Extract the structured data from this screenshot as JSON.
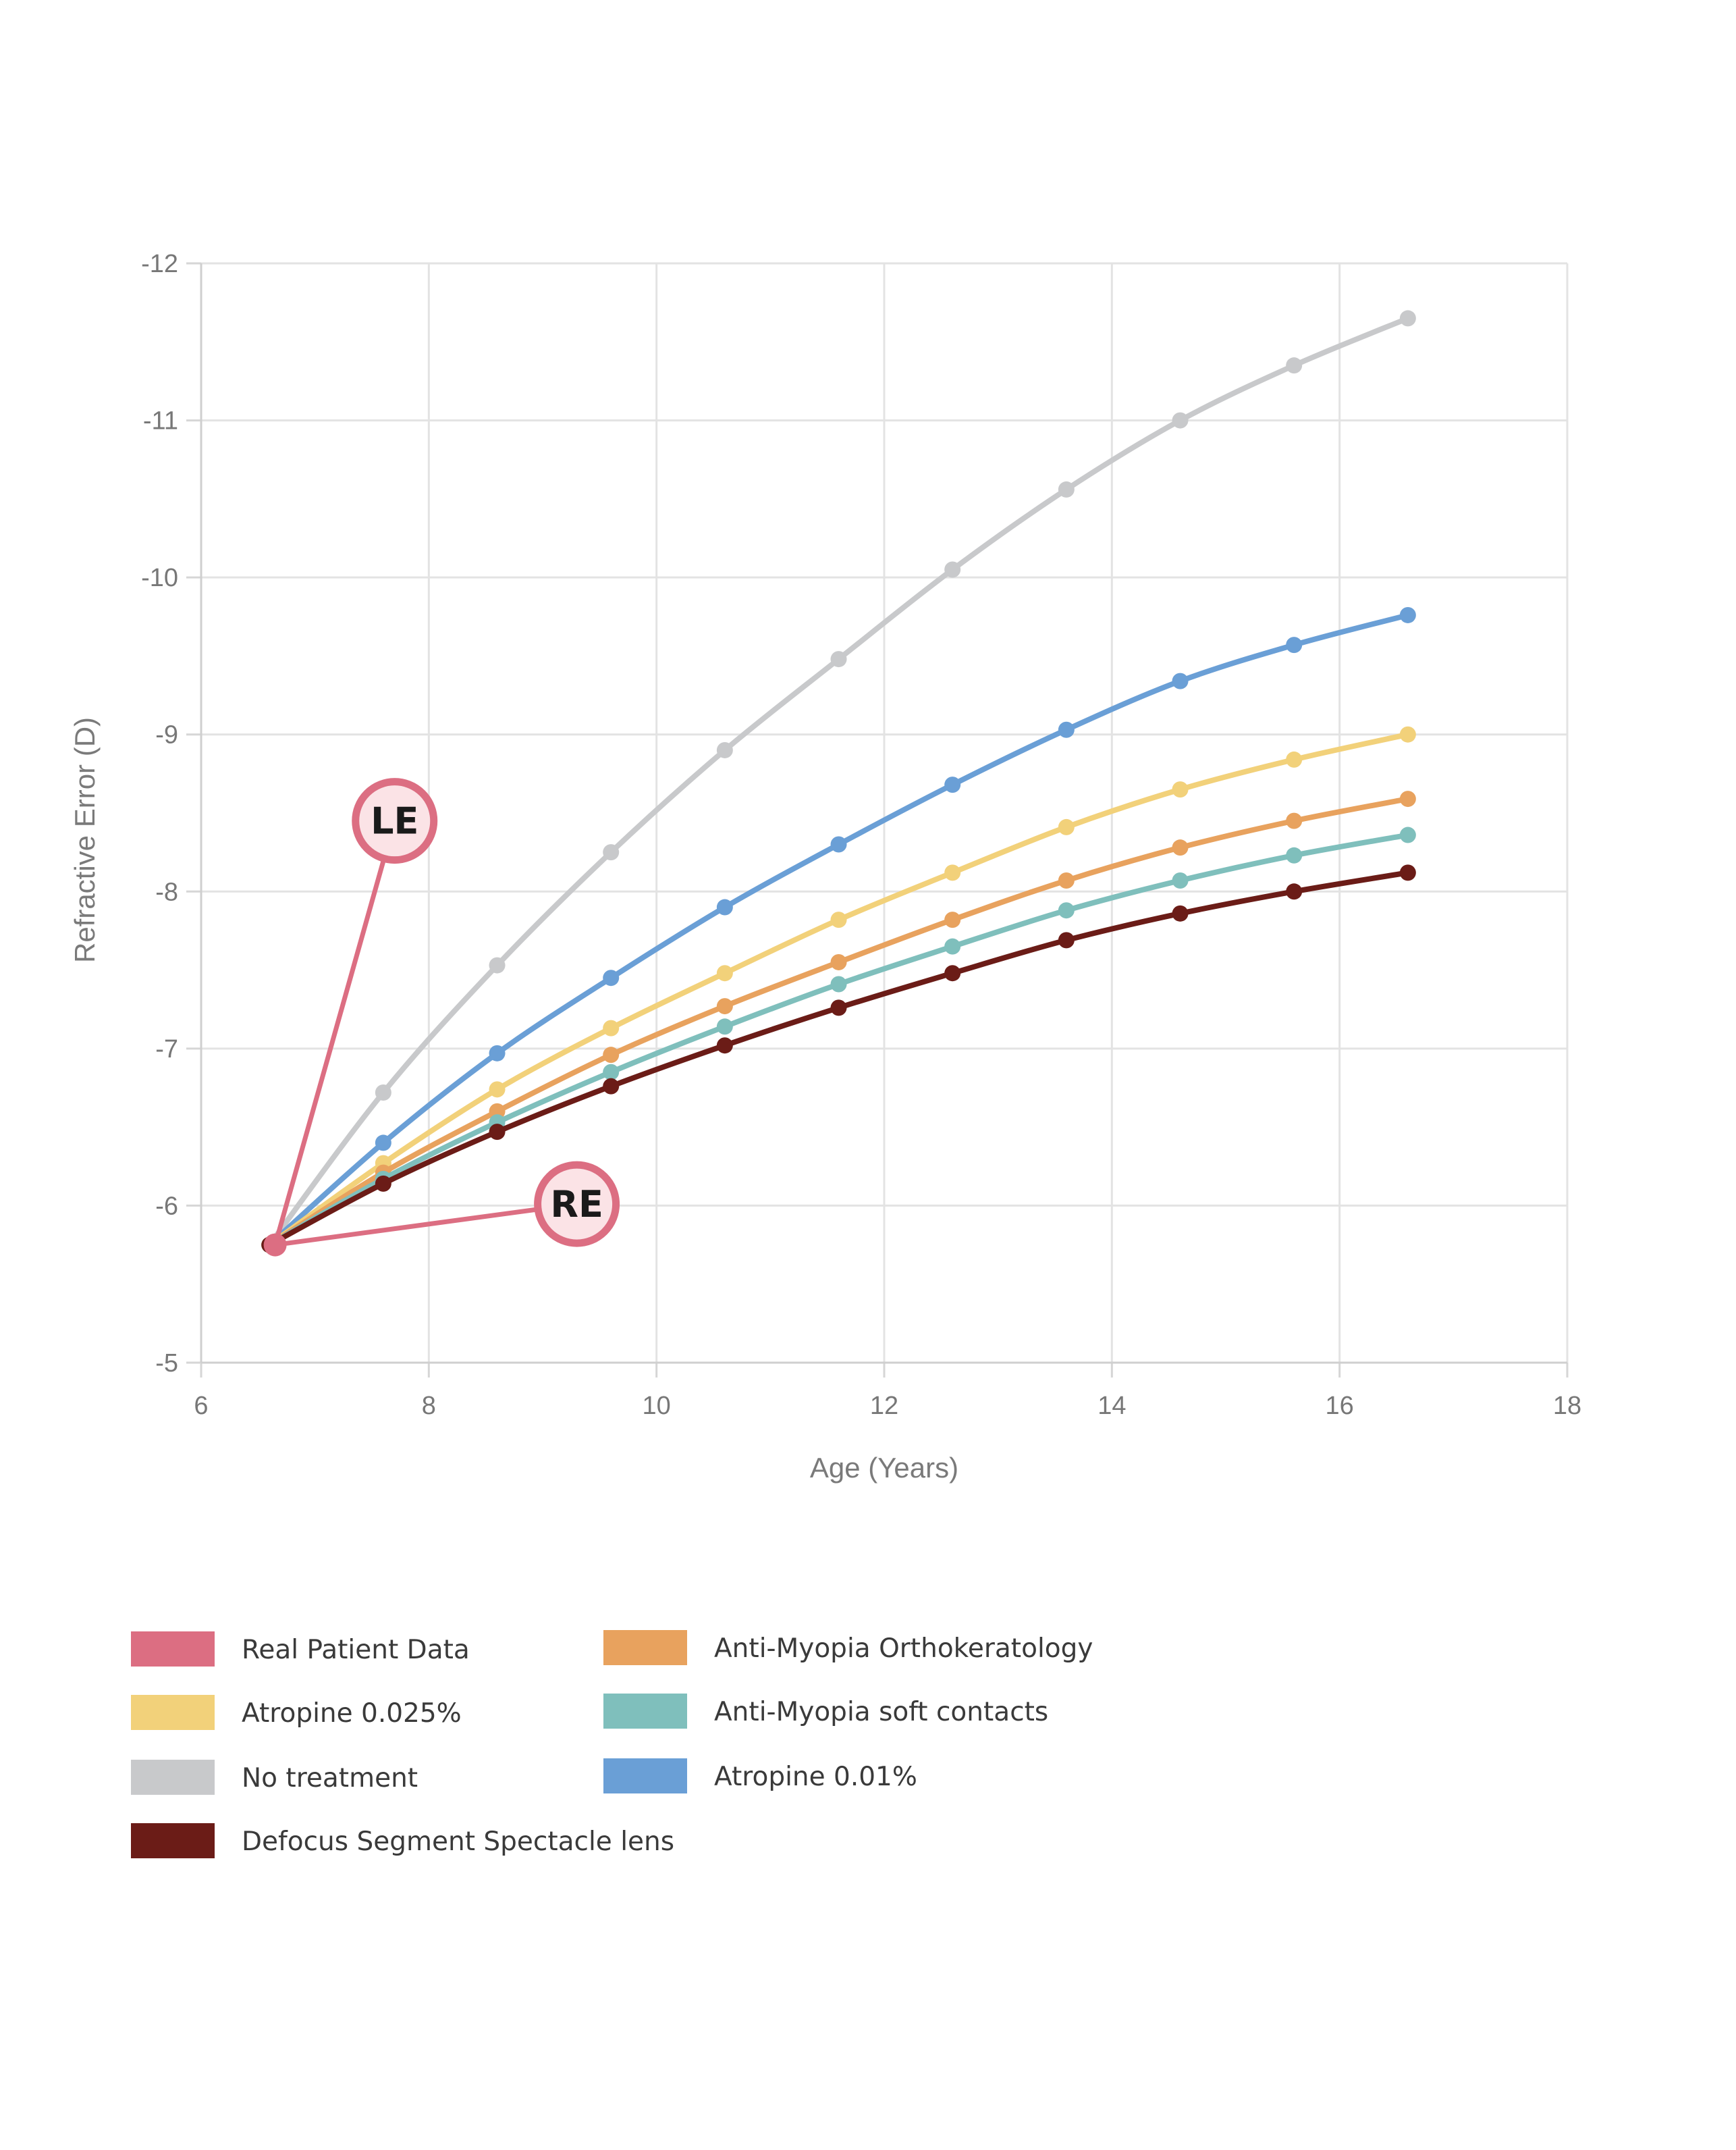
{
  "chart_data": {
    "type": "line",
    "xlabel": "Age (Years)",
    "ylabel": "Refractive Error (D)",
    "xlim": [
      6,
      18
    ],
    "ylim": [
      -5,
      -12
    ],
    "x_ticks": [
      "6",
      "8",
      "10",
      "12",
      "14",
      "16",
      "18"
    ],
    "y_ticks": [
      "-12",
      "-11",
      "-10",
      "-9",
      "-8",
      "-7",
      "-6",
      "-5"
    ],
    "grid": true,
    "legend_position": "bottom",
    "series": [
      {
        "name": "No treatment",
        "color": "#c8c9cb",
        "x": [
          6.6,
          7.6,
          8.6,
          9.6,
          10.6,
          11.6,
          12.6,
          13.6,
          14.6,
          15.6,
          16.6
        ],
        "values": [
          -5.75,
          -6.72,
          -7.53,
          -8.25,
          -8.9,
          -9.48,
          -10.05,
          -10.56,
          -11.0,
          -11.35,
          -11.65
        ]
      },
      {
        "name": "Atropine 0.01%",
        "color": "#6a9fd6",
        "x": [
          6.6,
          7.6,
          8.6,
          9.6,
          10.6,
          11.6,
          12.6,
          13.6,
          14.6,
          15.6,
          16.6
        ],
        "values": [
          -5.75,
          -6.4,
          -6.97,
          -7.45,
          -7.9,
          -8.3,
          -8.68,
          -9.03,
          -9.34,
          -9.57,
          -9.76
        ]
      },
      {
        "name": "Atropine 0.025%",
        "color": "#f2d17a",
        "x": [
          6.6,
          7.6,
          8.6,
          9.6,
          10.6,
          11.6,
          12.6,
          13.6,
          14.6,
          15.6,
          16.6
        ],
        "values": [
          -5.75,
          -6.27,
          -6.74,
          -7.13,
          -7.48,
          -7.82,
          -8.12,
          -8.41,
          -8.65,
          -8.84,
          -9.0
        ]
      },
      {
        "name": "Anti-Myopia Orthokeratology",
        "color": "#e8a25e",
        "x": [
          6.6,
          7.6,
          8.6,
          9.6,
          10.6,
          11.6,
          12.6,
          13.6,
          14.6,
          15.6,
          16.6
        ],
        "values": [
          -5.75,
          -6.21,
          -6.6,
          -6.96,
          -7.27,
          -7.55,
          -7.82,
          -8.07,
          -8.28,
          -8.45,
          -8.59
        ]
      },
      {
        "name": "Anti-Myopia soft contacts",
        "color": "#7fbfbc",
        "x": [
          6.6,
          7.6,
          8.6,
          9.6,
          10.6,
          11.6,
          12.6,
          13.6,
          14.6,
          15.6,
          16.6
        ],
        "values": [
          -5.75,
          -6.17,
          -6.53,
          -6.85,
          -7.14,
          -7.41,
          -7.65,
          -7.88,
          -8.07,
          -8.23,
          -8.36
        ]
      },
      {
        "name": "Defocus Segment Spectacle lens",
        "color": "#6b1c17",
        "x": [
          6.6,
          7.6,
          8.6,
          9.6,
          10.6,
          11.6,
          12.6,
          13.6,
          14.6,
          15.6,
          16.6
        ],
        "values": [
          -5.75,
          -6.14,
          -6.47,
          -6.76,
          -7.02,
          -7.26,
          -7.48,
          -7.69,
          -7.86,
          -8.0,
          -8.12
        ]
      }
    ],
    "patient_data": {
      "name": "Real Patient Data",
      "color": "#dc6e82",
      "points": [
        {
          "label": "LE",
          "x": 7.7,
          "y": -8.45
        },
        {
          "label": "RE",
          "x": 9.3,
          "y": -6.01
        }
      ],
      "origin": {
        "x": 6.65,
        "y": -5.75
      }
    },
    "legend": [
      {
        "name": "Real Patient Data",
        "color": "#dc6e82"
      },
      {
        "name": "Anti-Myopia Orthokeratology",
        "color": "#e8a25e"
      },
      {
        "name": "Atropine 0.025%",
        "color": "#f2d17a"
      },
      {
        "name": "Anti-Myopia soft contacts",
        "color": "#7fbfbc"
      },
      {
        "name": "No treatment",
        "color": "#c8c9cb"
      },
      {
        "name": "Atropine 0.01%",
        "color": "#6a9fd6"
      },
      {
        "name": "Defocus Segment Spectacle lens",
        "color": "#6b1c17"
      }
    ]
  }
}
